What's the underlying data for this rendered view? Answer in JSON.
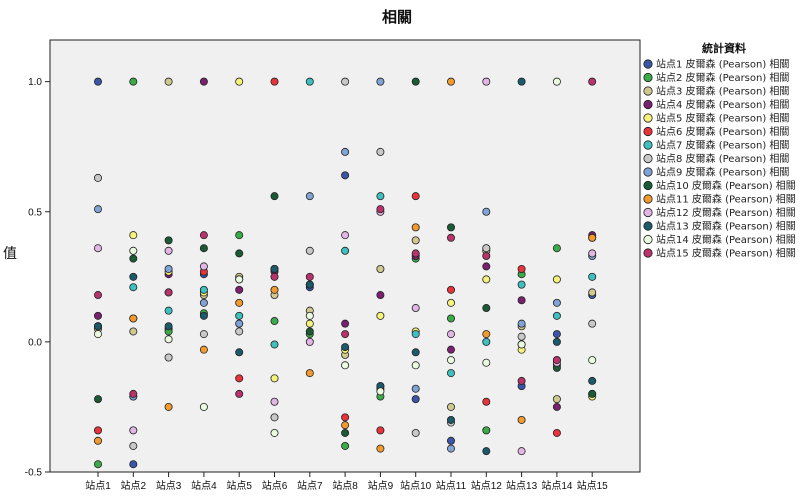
{
  "chart_data": {
    "type": "scatter",
    "title": "相關",
    "ylabel": "值",
    "xlabel": "",
    "ylim": [
      -0.5,
      1.16
    ],
    "yticks": [
      "1.0",
      "0.5",
      "0.0",
      "-0.5"
    ],
    "ytick_values": [
      1.0,
      0.5,
      0.0,
      -0.5
    ],
    "grid": false,
    "legend_position": "right",
    "legend_title": "統計資料",
    "categories": [
      "站点1",
      "站点2",
      "站点3",
      "站点4",
      "站点5",
      "站点6",
      "站点7",
      "站点8",
      "站点9",
      "站点10",
      "站点11",
      "站点12",
      "站点13",
      "站点14",
      "站点15"
    ],
    "series": [
      {
        "name": "站点1 皮爾森 (Pearson) 相關",
        "color": "#3b55a8",
        "values": [
          1.0,
          -0.47,
          0.05,
          0.26,
          0.07,
          0.28,
          0.21,
          0.64,
          -0.17,
          -0.22,
          -0.38,
          0.36,
          -0.17,
          0.03,
          0.18
        ]
      },
      {
        "name": "站点2 皮爾森 (Pearson) 相關",
        "color": "#3aab48",
        "values": [
          -0.47,
          1.0,
          0.04,
          0.11,
          0.41,
          0.08,
          0.03,
          -0.4,
          -0.21,
          0.32,
          0.09,
          -0.34,
          0.26,
          0.36,
          -0.2
        ]
      },
      {
        "name": "站点3 皮爾森 (Pearson) 相關",
        "color": "#cfc98f",
        "values": [
          0.05,
          0.04,
          1.0,
          0.18,
          0.25,
          0.18,
          0.12,
          -0.05,
          0.28,
          0.39,
          -0.25,
          0.35,
          0.06,
          -0.22,
          0.19
        ]
      },
      {
        "name": "站点4 皮爾森 (Pearson) 相關",
        "color": "#7a2070",
        "values": [
          0.1,
          -0.21,
          0.26,
          1.0,
          0.2,
          0.27,
          0.22,
          0.07,
          0.18,
          0.33,
          -0.03,
          0.29,
          0.16,
          -0.25,
          0.41
        ]
      },
      {
        "name": "站点5 皮爾森 (Pearson) 相關",
        "color": "#f6f37a",
        "values": [
          0.06,
          0.41,
          0.27,
          0.19,
          1.0,
          -0.14,
          0.07,
          -0.03,
          0.1,
          0.04,
          0.15,
          0.24,
          -0.03,
          0.24,
          -0.21
        ]
      },
      {
        "name": "站点6 皮爾森 (Pearson) 相關",
        "color": "#e8333b",
        "values": [
          -0.34,
          0.09,
          0.19,
          0.27,
          -0.14,
          1.0,
          0.22,
          -0.29,
          -0.34,
          0.56,
          0.2,
          -0.23,
          0.28,
          -0.35,
          0.4
        ]
      },
      {
        "name": "站点7 皮爾森 (Pearson) 相關",
        "color": "#3fbfbf",
        "values": [
          0.06,
          0.21,
          0.12,
          0.2,
          0.1,
          -0.01,
          1.0,
          0.35,
          0.56,
          0.03,
          -0.12,
          0.0,
          0.22,
          0.1,
          0.25
        ]
      },
      {
        "name": "站点8 皮爾森 (Pearson) 相關",
        "color": "#c8c8c8",
        "values": [
          0.63,
          -0.4,
          -0.06,
          0.03,
          0.04,
          -0.29,
          0.35,
          1.0,
          0.73,
          -0.35,
          -0.31,
          0.36,
          0.02,
          -0.09,
          0.07
        ]
      },
      {
        "name": "站点9 皮爾森 (Pearson) 相關",
        "color": "#7fa3d6",
        "values": [
          0.51,
          -0.21,
          0.28,
          0.15,
          0.07,
          0.28,
          0.56,
          0.73,
          1.0,
          -0.18,
          -0.41,
          0.5,
          0.07,
          0.15,
          0.33
        ]
      },
      {
        "name": "站点10 皮爾森 (Pearson) 相關",
        "color": "#1a5a35",
        "values": [
          -0.22,
          0.32,
          0.39,
          0.36,
          0.34,
          0.56,
          0.04,
          -0.35,
          -0.18,
          1.0,
          0.44,
          0.13,
          -0.01,
          -0.1,
          -0.2
        ]
      },
      {
        "name": "站点11 皮爾森 (Pearson) 相關",
        "color": "#f29a2e",
        "values": [
          -0.38,
          0.09,
          -0.25,
          -0.03,
          0.15,
          0.2,
          -0.12,
          -0.32,
          -0.41,
          0.44,
          1.0,
          0.03,
          -0.3,
          -0.07,
          0.4
        ]
      },
      {
        "name": "站点12 皮爾森 (Pearson) 相關",
        "color": "#e3b5e5",
        "values": [
          0.36,
          -0.34,
          0.35,
          0.29,
          0.24,
          -0.23,
          0.0,
          0.41,
          0.5,
          0.13,
          0.03,
          1.0,
          -0.42,
          -0.08,
          0.34
        ]
      },
      {
        "name": "站点13 皮爾森 (Pearson) 相關",
        "color": "#1b5a6b",
        "values": [
          0.06,
          0.25,
          0.06,
          0.1,
          -0.04,
          0.28,
          0.22,
          -0.02,
          -0.17,
          -0.04,
          -0.3,
          -0.42,
          1.0,
          0.0,
          -0.15
        ]
      },
      {
        "name": "站点14 皮爾森 (Pearson) 相關",
        "color": "#eafbe0",
        "values": [
          0.03,
          0.35,
          0.01,
          -0.25,
          0.24,
          -0.35,
          0.1,
          -0.09,
          -0.19,
          -0.09,
          -0.07,
          -0.08,
          -0.01,
          1.0,
          -0.07
        ]
      },
      {
        "name": "站点15 皮爾森 (Pearson) 相關",
        "color": "#b8336a",
        "values": [
          0.18,
          -0.2,
          0.19,
          0.41,
          -0.2,
          0.25,
          0.25,
          0.03,
          0.51,
          0.34,
          0.4,
          0.33,
          -0.15,
          -0.07,
          1.0
        ]
      }
    ]
  }
}
